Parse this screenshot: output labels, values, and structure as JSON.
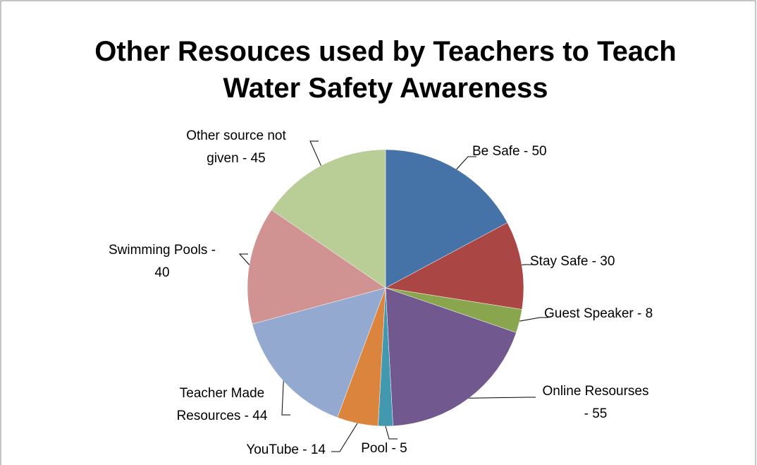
{
  "chart_data": {
    "type": "pie",
    "title": "Other Resouces used by Teachers to Teach Water Safety Awareness",
    "values": [
      50,
      30,
      8,
      55,
      5,
      14,
      44,
      40,
      45
    ],
    "value_labels": [
      "Be Safe - 50",
      "Stay Safe - 30",
      "Guest Speaker - 8",
      "Online Resourses - 55",
      "Pool - 5",
      "YouTube - 14",
      "Teacher Made Resources - 44",
      "Swimming Pools - 40",
      "Other source not given - 45"
    ],
    "colors": [
      "#4572A7",
      "#AA4643",
      "#89A54E",
      "#71588F",
      "#4198AF",
      "#DB843D",
      "#93A9CF",
      "#D19392",
      "#B9CD96"
    ]
  }
}
